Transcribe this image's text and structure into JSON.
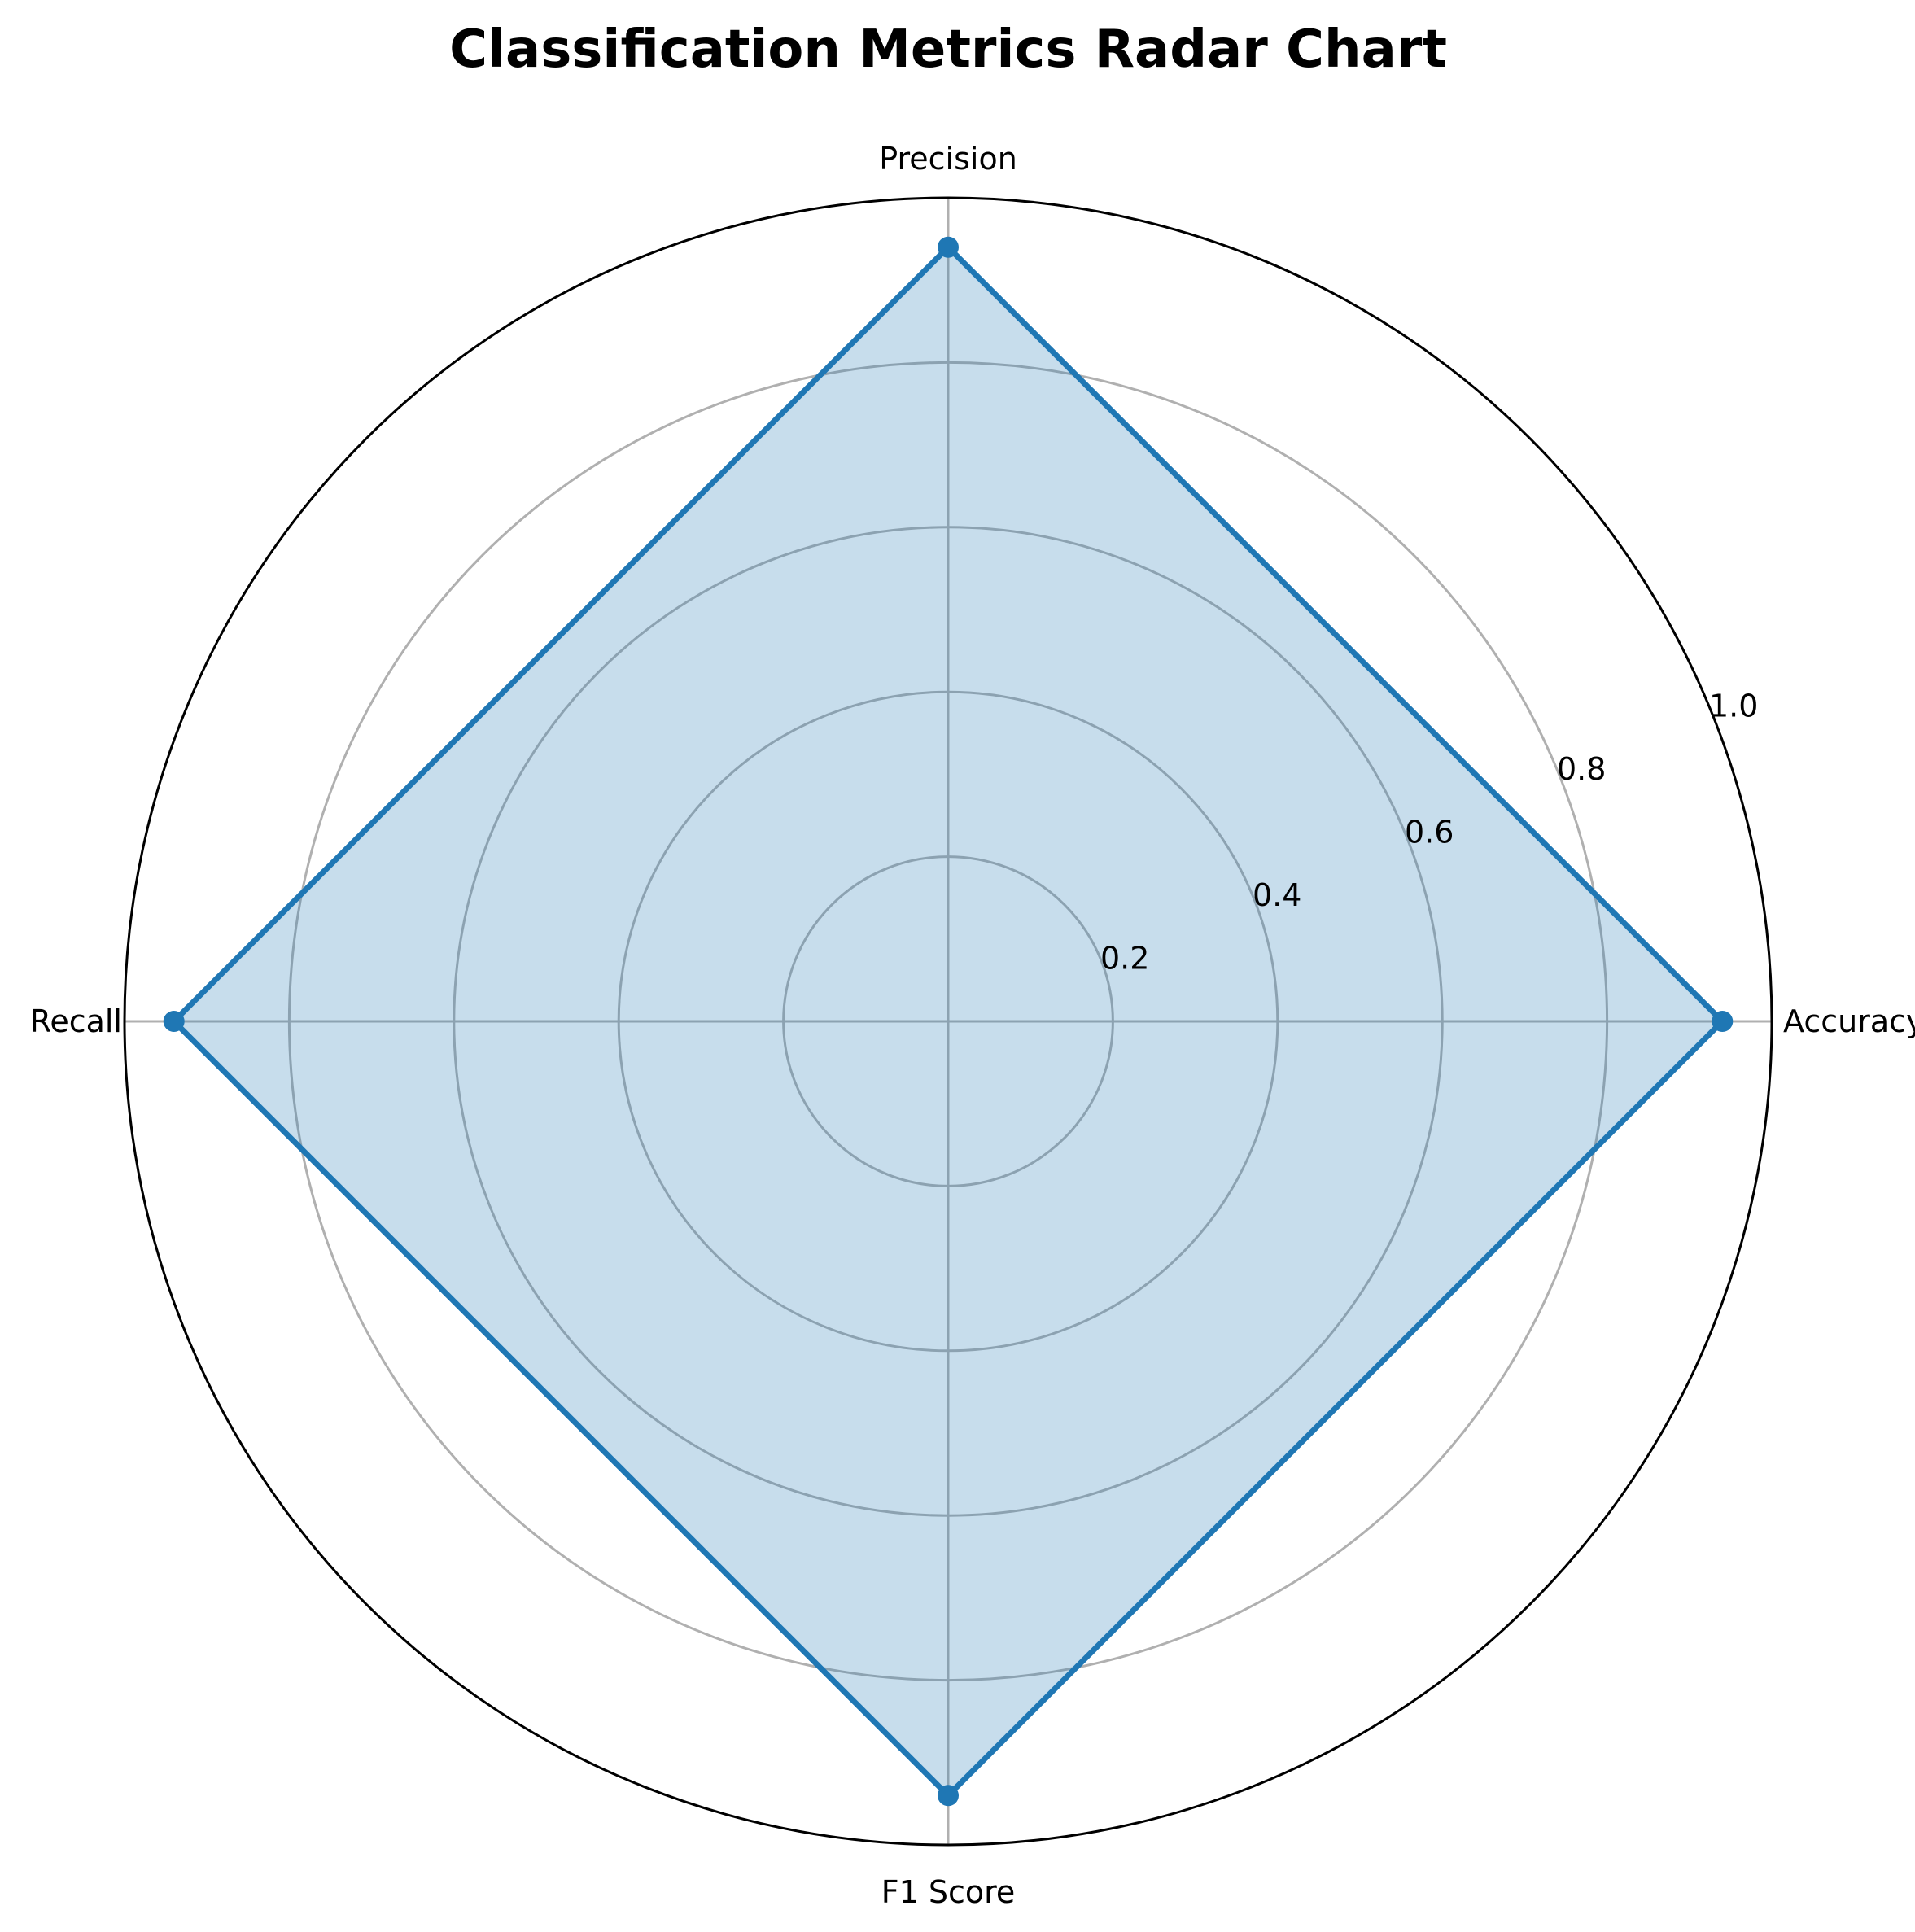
{
  "chart_data": {
    "type": "radar",
    "title": "Classification Metrics Radar Chart",
    "categories": [
      "Accuracy",
      "Precision",
      "Recall",
      "F1 Score"
    ],
    "series": [
      {
        "values": [
          0.94,
          0.94,
          0.94,
          0.94
        ],
        "color": "#1f77b4",
        "fill_color": "#1f77b4",
        "fill_opacity": 0.25,
        "markers": true
      }
    ],
    "rlim": [
      0,
      1.0
    ],
    "rticks": [
      0.2,
      0.4,
      0.6,
      0.8,
      1.0
    ],
    "rtick_labels": [
      "0.2",
      "0.4",
      "0.6",
      "0.8",
      "1.0"
    ],
    "grid": true,
    "grid_color": "#b0b0b0",
    "outline_color": "#000000",
    "legend": false
  }
}
